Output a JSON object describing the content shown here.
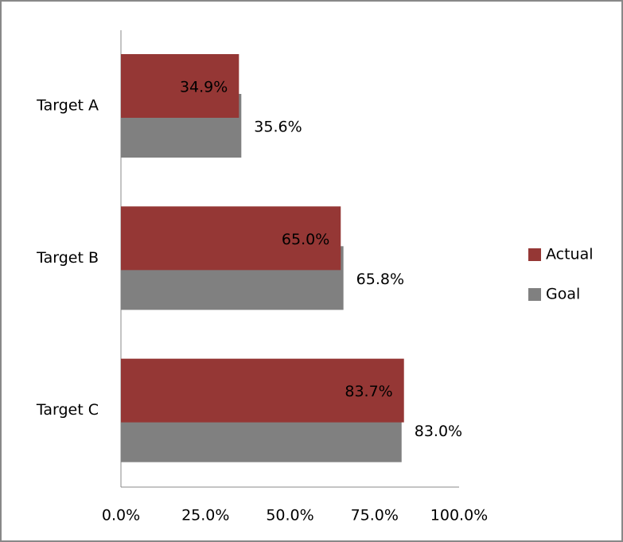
{
  "chart_data": {
    "type": "bar",
    "orientation": "horizontal",
    "categories": [
      "Target A",
      "Target B",
      "Target C"
    ],
    "series": [
      {
        "name": "Actual",
        "color": "#953735",
        "values": [
          34.9,
          65.0,
          83.7
        ],
        "value_labels": [
          "34.9%",
          "65.0%",
          "83.7%"
        ]
      },
      {
        "name": "Goal",
        "color": "#808080",
        "values": [
          35.6,
          65.8,
          83.0
        ],
        "value_labels": [
          "35.6%",
          "65.8%",
          "83.0%"
        ]
      }
    ],
    "xlim": [
      0,
      100
    ],
    "xticks": [
      {
        "value": 0,
        "label": "0.0%"
      },
      {
        "value": 25,
        "label": "25.0%"
      },
      {
        "value": 50,
        "label": "50.0%"
      },
      {
        "value": 75,
        "label": "75.0%"
      },
      {
        "value": 100,
        "label": "100.0%"
      }
    ],
    "legend": "right"
  }
}
